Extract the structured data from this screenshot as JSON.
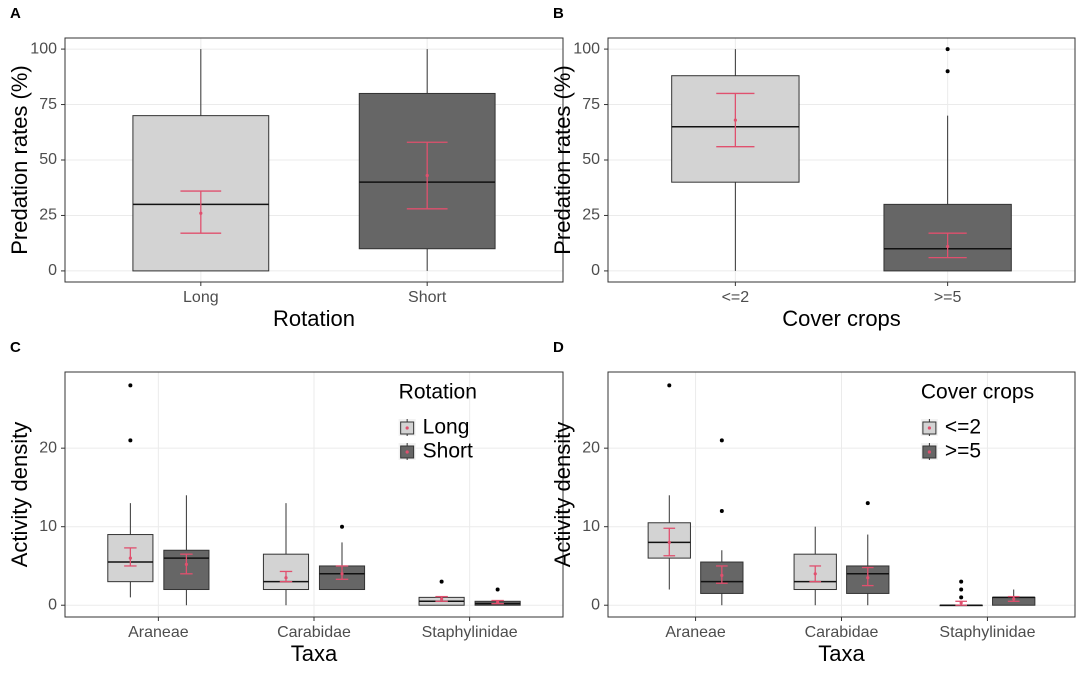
{
  "chart_data": [
    {
      "type": "box",
      "panel_label": "A",
      "x_label": "Rotation",
      "y_label": "Predation rates (%)",
      "categories": [
        "Long",
        "Short"
      ],
      "colors": [
        "#d3d3d3",
        "#666666"
      ],
      "error_color": "#e0506e",
      "ylim": [
        -5,
        105
      ],
      "yticks": [
        0,
        25,
        50,
        75,
        100
      ],
      "grid": true,
      "boxes": [
        {
          "min": 0,
          "q1": 0,
          "median": 30,
          "q3": 70,
          "max": 100,
          "mean": 26,
          "ci": [
            17,
            36
          ]
        },
        {
          "min": 0,
          "q1": 10,
          "median": 40,
          "q3": 80,
          "max": 100,
          "mean": 43,
          "ci": [
            28,
            58
          ]
        }
      ]
    },
    {
      "type": "box",
      "panel_label": "B",
      "x_label": "Cover crops",
      "y_label": "Predation rates (%)",
      "categories": [
        "<=2",
        ">=5"
      ],
      "colors": [
        "#d3d3d3",
        "#666666"
      ],
      "error_color": "#e0506e",
      "ylim": [
        -5,
        105
      ],
      "yticks": [
        0,
        25,
        50,
        75,
        100
      ],
      "grid": true,
      "boxes": [
        {
          "min": 0,
          "q1": 40,
          "median": 65,
          "q3": 88,
          "max": 100,
          "mean": 68,
          "ci": [
            56,
            80
          ]
        },
        {
          "min": 0,
          "q1": 0,
          "median": 10,
          "q3": 30,
          "max": 70,
          "outliers": [
            90,
            100
          ],
          "mean": 11,
          "ci": [
            6,
            17
          ]
        }
      ]
    },
    {
      "type": "box",
      "panel_label": "C",
      "x_label": "Taxa",
      "y_label": "Activity density",
      "categories": [
        "Araneae",
        "Carabidae",
        "Staphylinidae"
      ],
      "legend_title": "Rotation",
      "error_color": "#e0506e",
      "ylim": [
        -1.5,
        29.7
      ],
      "yticks": [
        0,
        10,
        20
      ],
      "grid": true,
      "series": [
        {
          "name": "Long",
          "color": "#d3d3d3",
          "boxes": [
            {
              "min": 1,
              "q1": 3,
              "median": 5.5,
              "q3": 9,
              "max": 13,
              "outliers": [
                21,
                28
              ],
              "mean": 6,
              "ci": [
                5,
                7.3
              ]
            },
            {
              "min": 0,
              "q1": 2,
              "median": 3,
              "q3": 6.5,
              "max": 13,
              "mean": 3.5,
              "ci": [
                3,
                4.3
              ]
            },
            {
              "min": 0,
              "q1": 0,
              "median": 0.5,
              "q3": 1,
              "max": 1,
              "outliers": [
                3
              ],
              "mean": 0.8,
              "ci": [
                0.5,
                1.1
              ]
            }
          ]
        },
        {
          "name": "Short",
          "color": "#666666",
          "boxes": [
            {
              "min": 0,
              "q1": 2,
              "median": 6,
              "q3": 7,
              "max": 14,
              "mean": 5.2,
              "ci": [
                4,
                6.5
              ]
            },
            {
              "min": 2,
              "q1": 2,
              "median": 4,
              "q3": 5,
              "max": 8,
              "outliers": [
                10
              ],
              "mean": 4,
              "ci": [
                3.3,
                5
              ]
            },
            {
              "min": 0,
              "q1": 0,
              "median": 0.2,
              "q3": 0.5,
              "max": 0.5,
              "outliers": [
                2
              ],
              "mean": 0.4,
              "ci": [
                0.2,
                0.6
              ]
            }
          ]
        }
      ]
    },
    {
      "type": "box",
      "panel_label": "D",
      "x_label": "Taxa",
      "y_label": "Activity density",
      "categories": [
        "Araneae",
        "Carabidae",
        "Staphylinidae"
      ],
      "legend_title": "Cover crops",
      "error_color": "#e0506e",
      "ylim": [
        -1.5,
        29.7
      ],
      "yticks": [
        0,
        10,
        20
      ],
      "grid": true,
      "series": [
        {
          "name": "<=2",
          "color": "#d3d3d3",
          "boxes": [
            {
              "min": 2,
              "q1": 6,
              "median": 8,
              "q3": 10.5,
              "max": 14,
              "outliers": [
                28
              ],
              "mean": 8,
              "ci": [
                6.3,
                9.8
              ]
            },
            {
              "min": 0,
              "q1": 2,
              "median": 3,
              "q3": 6.5,
              "max": 10,
              "mean": 4,
              "ci": [
                3,
                5
              ]
            },
            {
              "min": 0,
              "q1": 0,
              "median": 0,
              "q3": 0,
              "max": 0,
              "outliers": [
                1,
                2,
                3
              ],
              "mean": 0.3,
              "ci": [
                0,
                0.5
              ]
            }
          ]
        },
        {
          "name": ">=5",
          "color": "#666666",
          "boxes": [
            {
              "min": 0,
              "q1": 1.5,
              "median": 3,
              "q3": 5.5,
              "max": 7,
              "outliers": [
                12,
                21
              ],
              "mean": 3.8,
              "ci": [
                2.8,
                5
              ]
            },
            {
              "min": 0,
              "q1": 1.5,
              "median": 4,
              "q3": 5,
              "max": 9,
              "outliers": [
                13
              ],
              "mean": 3.5,
              "ci": [
                2.5,
                4.8
              ]
            },
            {
              "min": 0,
              "q1": 0,
              "median": 1,
              "q3": 1,
              "max": 2,
              "mean": 0.8,
              "ci": [
                0.5,
                1.1
              ]
            }
          ]
        }
      ]
    }
  ]
}
